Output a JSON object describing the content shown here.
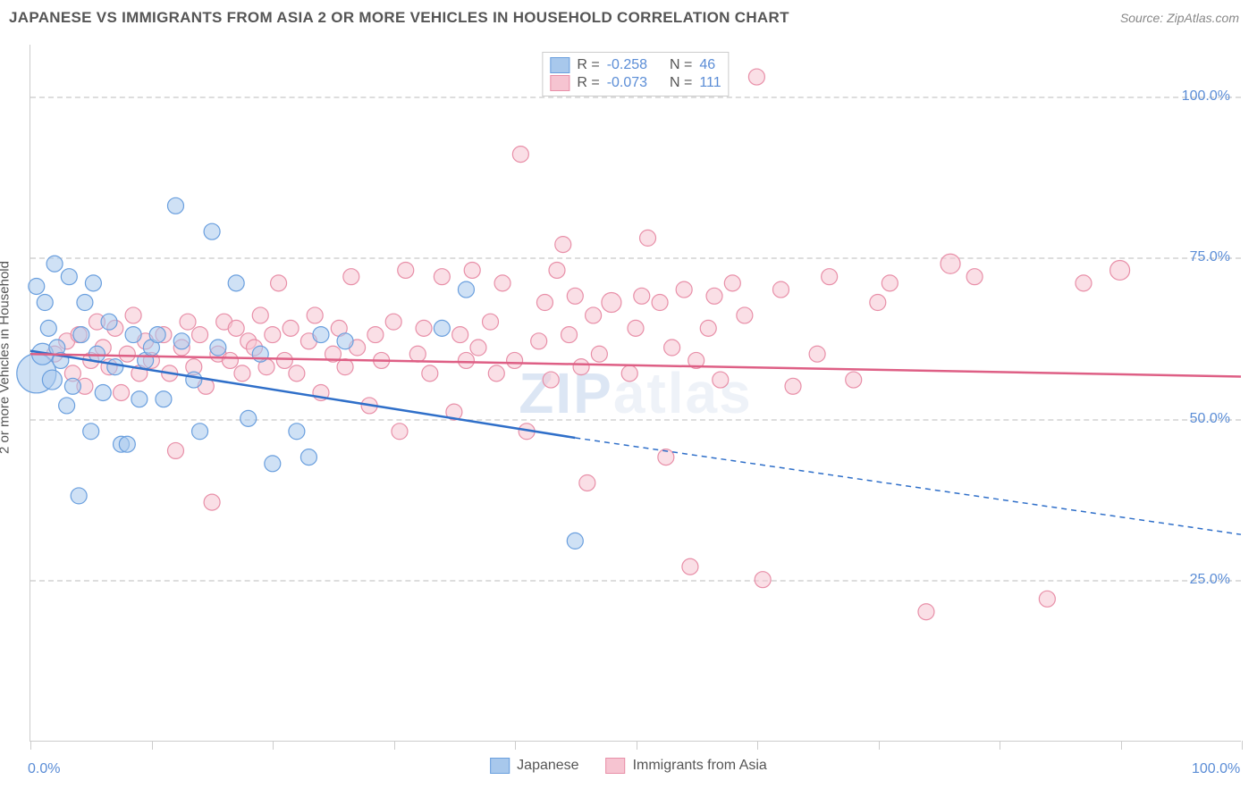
{
  "header": {
    "title": "JAPANESE VS IMMIGRANTS FROM ASIA 2 OR MORE VEHICLES IN HOUSEHOLD CORRELATION CHART",
    "source_label": "Source:",
    "source": "ZipAtlas.com"
  },
  "chart": {
    "type": "scatter",
    "y_axis_label": "2 or more Vehicles in Household",
    "xlim": [
      0,
      100
    ],
    "ylim": [
      0,
      108
    ],
    "x_ticks": [
      0,
      10,
      20,
      30,
      40,
      50,
      60,
      70,
      80,
      90,
      100
    ],
    "y_ticks": [
      25,
      50,
      75,
      100
    ],
    "y_tick_labels": [
      "25.0%",
      "50.0%",
      "75.0%",
      "100.0%"
    ],
    "x_origin_label": "0.0%",
    "x_max_label": "100.0%",
    "background_color": "#ffffff",
    "grid_color": "#dddddd",
    "axis_color": "#cccccc",
    "tick_label_color": "#5b8dd6",
    "watermark": "ZIPatlas",
    "series": [
      {
        "name": "Japanese",
        "fill_color": "#a8c8ec",
        "stroke_color": "#6a9fde",
        "fill_opacity": 0.55,
        "marker_radius_base": 9,
        "R": "-0.258",
        "N": "46",
        "trend": {
          "x1": 0,
          "y1": 60.5,
          "x2": 45,
          "y2": 47,
          "color": "#2f6fc9",
          "width": 2.5,
          "dash_ext_x": 100,
          "dash_ext_y": 32
        },
        "points": [
          {
            "x": 0.5,
            "y": 57,
            "r": 22
          },
          {
            "x": 0.5,
            "y": 70.5,
            "r": 9
          },
          {
            "x": 1,
            "y": 60,
            "r": 12
          },
          {
            "x": 1.2,
            "y": 68,
            "r": 9
          },
          {
            "x": 1.5,
            "y": 64,
            "r": 9
          },
          {
            "x": 1.8,
            "y": 56,
            "r": 11
          },
          {
            "x": 2,
            "y": 74,
            "r": 9
          },
          {
            "x": 2.2,
            "y": 61,
            "r": 9
          },
          {
            "x": 2.5,
            "y": 59,
            "r": 9
          },
          {
            "x": 3,
            "y": 52,
            "r": 9
          },
          {
            "x": 3.2,
            "y": 72,
            "r": 9
          },
          {
            "x": 3.5,
            "y": 55,
            "r": 9
          },
          {
            "x": 4,
            "y": 38,
            "r": 9
          },
          {
            "x": 4.2,
            "y": 63,
            "r": 9
          },
          {
            "x": 4.5,
            "y": 68,
            "r": 9
          },
          {
            "x": 5,
            "y": 48,
            "r": 9
          },
          {
            "x": 5.2,
            "y": 71,
            "r": 9
          },
          {
            "x": 5.5,
            "y": 60,
            "r": 9
          },
          {
            "x": 6,
            "y": 54,
            "r": 9
          },
          {
            "x": 6.5,
            "y": 65,
            "r": 9
          },
          {
            "x": 7,
            "y": 58,
            "r": 9
          },
          {
            "x": 7.5,
            "y": 46,
            "r": 9
          },
          {
            "x": 8,
            "y": 46,
            "r": 9
          },
          {
            "x": 8.5,
            "y": 63,
            "r": 9
          },
          {
            "x": 9,
            "y": 53,
            "r": 9
          },
          {
            "x": 9.5,
            "y": 59,
            "r": 9
          },
          {
            "x": 10,
            "y": 61,
            "r": 9
          },
          {
            "x": 10.5,
            "y": 63,
            "r": 9
          },
          {
            "x": 11,
            "y": 53,
            "r": 9
          },
          {
            "x": 12,
            "y": 83,
            "r": 9
          },
          {
            "x": 12.5,
            "y": 62,
            "r": 9
          },
          {
            "x": 13.5,
            "y": 56,
            "r": 9
          },
          {
            "x": 14,
            "y": 48,
            "r": 9
          },
          {
            "x": 15,
            "y": 79,
            "r": 9
          },
          {
            "x": 15.5,
            "y": 61,
            "r": 9
          },
          {
            "x": 17,
            "y": 71,
            "r": 9
          },
          {
            "x": 18,
            "y": 50,
            "r": 9
          },
          {
            "x": 19,
            "y": 60,
            "r": 9
          },
          {
            "x": 20,
            "y": 43,
            "r": 9
          },
          {
            "x": 22,
            "y": 48,
            "r": 9
          },
          {
            "x": 23,
            "y": 44,
            "r": 9
          },
          {
            "x": 24,
            "y": 63,
            "r": 9
          },
          {
            "x": 26,
            "y": 62,
            "r": 9
          },
          {
            "x": 34,
            "y": 64,
            "r": 9
          },
          {
            "x": 36,
            "y": 70,
            "r": 9
          },
          {
            "x": 45,
            "y": 31,
            "r": 9
          }
        ]
      },
      {
        "name": "Immigrants from Asia",
        "fill_color": "#f6c4d1",
        "stroke_color": "#e88fa8",
        "fill_opacity": 0.55,
        "marker_radius_base": 9,
        "R": "-0.073",
        "N": "111",
        "trend": {
          "x1": 0,
          "y1": 60,
          "x2": 100,
          "y2": 56.5,
          "color": "#de5f85",
          "width": 2.5
        },
        "points": [
          {
            "x": 2,
            "y": 60,
            "r": 9
          },
          {
            "x": 3,
            "y": 62,
            "r": 9
          },
          {
            "x": 3.5,
            "y": 57,
            "r": 9
          },
          {
            "x": 4,
            "y": 63,
            "r": 9
          },
          {
            "x": 4.5,
            "y": 55,
            "r": 9
          },
          {
            "x": 5,
            "y": 59,
            "r": 9
          },
          {
            "x": 5.5,
            "y": 65,
            "r": 9
          },
          {
            "x": 6,
            "y": 61,
            "r": 9
          },
          {
            "x": 6.5,
            "y": 58,
            "r": 9
          },
          {
            "x": 7,
            "y": 64,
            "r": 9
          },
          {
            "x": 7.5,
            "y": 54,
            "r": 9
          },
          {
            "x": 8,
            "y": 60,
            "r": 9
          },
          {
            "x": 8.5,
            "y": 66,
            "r": 9
          },
          {
            "x": 9,
            "y": 57,
            "r": 9
          },
          {
            "x": 9.5,
            "y": 62,
            "r": 9
          },
          {
            "x": 10,
            "y": 59,
            "r": 9
          },
          {
            "x": 11,
            "y": 63,
            "r": 9
          },
          {
            "x": 11.5,
            "y": 57,
            "r": 9
          },
          {
            "x": 12,
            "y": 45,
            "r": 9
          },
          {
            "x": 12.5,
            "y": 61,
            "r": 9
          },
          {
            "x": 13,
            "y": 65,
            "r": 9
          },
          {
            "x": 13.5,
            "y": 58,
            "r": 9
          },
          {
            "x": 14,
            "y": 63,
            "r": 9
          },
          {
            "x": 14.5,
            "y": 55,
            "r": 9
          },
          {
            "x": 15,
            "y": 37,
            "r": 9
          },
          {
            "x": 15.5,
            "y": 60,
            "r": 9
          },
          {
            "x": 16,
            "y": 65,
            "r": 9
          },
          {
            "x": 16.5,
            "y": 59,
            "r": 9
          },
          {
            "x": 17,
            "y": 64,
            "r": 9
          },
          {
            "x": 17.5,
            "y": 57,
            "r": 9
          },
          {
            "x": 18,
            "y": 62,
            "r": 9
          },
          {
            "x": 18.5,
            "y": 61,
            "r": 9
          },
          {
            "x": 19,
            "y": 66,
            "r": 9
          },
          {
            "x": 19.5,
            "y": 58,
            "r": 9
          },
          {
            "x": 20,
            "y": 63,
            "r": 9
          },
          {
            "x": 20.5,
            "y": 71,
            "r": 9
          },
          {
            "x": 21,
            "y": 59,
            "r": 9
          },
          {
            "x": 21.5,
            "y": 64,
            "r": 9
          },
          {
            "x": 22,
            "y": 57,
            "r": 9
          },
          {
            "x": 23,
            "y": 62,
            "r": 9
          },
          {
            "x": 23.5,
            "y": 66,
            "r": 9
          },
          {
            "x": 24,
            "y": 54,
            "r": 9
          },
          {
            "x": 25,
            "y": 60,
            "r": 9
          },
          {
            "x": 25.5,
            "y": 64,
            "r": 9
          },
          {
            "x": 26,
            "y": 58,
            "r": 9
          },
          {
            "x": 26.5,
            "y": 72,
            "r": 9
          },
          {
            "x": 27,
            "y": 61,
            "r": 9
          },
          {
            "x": 28,
            "y": 52,
            "r": 9
          },
          {
            "x": 28.5,
            "y": 63,
            "r": 9
          },
          {
            "x": 29,
            "y": 59,
            "r": 9
          },
          {
            "x": 30,
            "y": 65,
            "r": 9
          },
          {
            "x": 30.5,
            "y": 48,
            "r": 9
          },
          {
            "x": 31,
            "y": 73,
            "r": 9
          },
          {
            "x": 32,
            "y": 60,
            "r": 9
          },
          {
            "x": 32.5,
            "y": 64,
            "r": 9
          },
          {
            "x": 33,
            "y": 57,
            "r": 9
          },
          {
            "x": 34,
            "y": 72,
            "r": 9
          },
          {
            "x": 35,
            "y": 51,
            "r": 9
          },
          {
            "x": 35.5,
            "y": 63,
            "r": 9
          },
          {
            "x": 36,
            "y": 59,
            "r": 9
          },
          {
            "x": 36.5,
            "y": 73,
            "r": 9
          },
          {
            "x": 37,
            "y": 61,
            "r": 9
          },
          {
            "x": 38,
            "y": 65,
            "r": 9
          },
          {
            "x": 38.5,
            "y": 57,
            "r": 9
          },
          {
            "x": 39,
            "y": 71,
            "r": 9
          },
          {
            "x": 40,
            "y": 59,
            "r": 9
          },
          {
            "x": 40.5,
            "y": 91,
            "r": 9
          },
          {
            "x": 41,
            "y": 48,
            "r": 9
          },
          {
            "x": 42,
            "y": 62,
            "r": 9
          },
          {
            "x": 42.5,
            "y": 68,
            "r": 9
          },
          {
            "x": 43,
            "y": 56,
            "r": 9
          },
          {
            "x": 43.5,
            "y": 73,
            "r": 9
          },
          {
            "x": 44,
            "y": 77,
            "r": 9
          },
          {
            "x": 44.5,
            "y": 63,
            "r": 9
          },
          {
            "x": 45,
            "y": 69,
            "r": 9
          },
          {
            "x": 45.5,
            "y": 58,
            "r": 9
          },
          {
            "x": 46,
            "y": 40,
            "r": 9
          },
          {
            "x": 46.5,
            "y": 66,
            "r": 9
          },
          {
            "x": 47,
            "y": 60,
            "r": 9
          },
          {
            "x": 48,
            "y": 68,
            "r": 11
          },
          {
            "x": 49,
            "y": 103,
            "r": 9
          },
          {
            "x": 49.5,
            "y": 57,
            "r": 9
          },
          {
            "x": 50,
            "y": 64,
            "r": 9
          },
          {
            "x": 50.5,
            "y": 69,
            "r": 9
          },
          {
            "x": 51,
            "y": 78,
            "r": 9
          },
          {
            "x": 52,
            "y": 68,
            "r": 9
          },
          {
            "x": 52.5,
            "y": 44,
            "r": 9
          },
          {
            "x": 53,
            "y": 61,
            "r": 9
          },
          {
            "x": 54,
            "y": 70,
            "r": 9
          },
          {
            "x": 54.5,
            "y": 27,
            "r": 9
          },
          {
            "x": 55,
            "y": 59,
            "r": 9
          },
          {
            "x": 56,
            "y": 64,
            "r": 9
          },
          {
            "x": 56.5,
            "y": 69,
            "r": 9
          },
          {
            "x": 57,
            "y": 56,
            "r": 9
          },
          {
            "x": 58,
            "y": 71,
            "r": 9
          },
          {
            "x": 59,
            "y": 66,
            "r": 9
          },
          {
            "x": 60,
            "y": 103,
            "r": 9
          },
          {
            "x": 60.5,
            "y": 25,
            "r": 9
          },
          {
            "x": 62,
            "y": 70,
            "r": 9
          },
          {
            "x": 63,
            "y": 55,
            "r": 9
          },
          {
            "x": 65,
            "y": 60,
            "r": 9
          },
          {
            "x": 66,
            "y": 72,
            "r": 9
          },
          {
            "x": 68,
            "y": 56,
            "r": 9
          },
          {
            "x": 70,
            "y": 68,
            "r": 9
          },
          {
            "x": 71,
            "y": 71,
            "r": 9
          },
          {
            "x": 74,
            "y": 20,
            "r": 9
          },
          {
            "x": 76,
            "y": 74,
            "r": 11
          },
          {
            "x": 78,
            "y": 72,
            "r": 9
          },
          {
            "x": 84,
            "y": 22,
            "r": 9
          },
          {
            "x": 87,
            "y": 71,
            "r": 9
          },
          {
            "x": 90,
            "y": 73,
            "r": 11
          }
        ]
      }
    ],
    "legend_bottom": [
      {
        "label": "Japanese",
        "fill": "#a8c8ec",
        "stroke": "#6a9fde"
      },
      {
        "label": "Immigrants from Asia",
        "fill": "#f6c4d1",
        "stroke": "#e88fa8"
      }
    ]
  }
}
